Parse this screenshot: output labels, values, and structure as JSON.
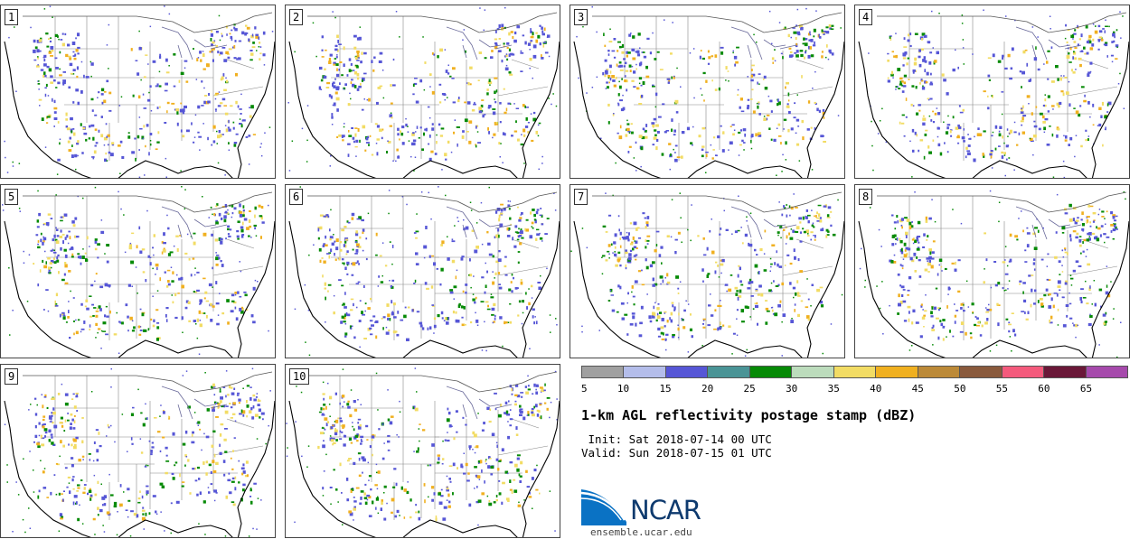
{
  "members": [
    "1",
    "2",
    "3",
    "4",
    "5",
    "6",
    "7",
    "8",
    "9",
    "10"
  ],
  "colorbar": {
    "colors": [
      "#a0a0a0",
      "#b4bdea",
      "#5656d6",
      "#4a9496",
      "#068a06",
      "#bcdcbc",
      "#f2dc64",
      "#f0b020",
      "#bc8a38",
      "#8a5a3c",
      "#f45a7c",
      "#6a1838",
      "#a64aac"
    ],
    "ticks": [
      "5",
      "10",
      "15",
      "20",
      "25",
      "30",
      "35",
      "40",
      "45",
      "50",
      "55",
      "60",
      "65"
    ]
  },
  "title": "1-km AGL reflectivity postage stamp (dBZ)",
  "init_line": " Init: Sat 2018-07-14 00 UTC",
  "valid_line": "Valid: Sun 2018-07-15 01 UTC",
  "logo": {
    "name": "NCAR",
    "url_text": "ensemble.ucar.edu"
  }
}
